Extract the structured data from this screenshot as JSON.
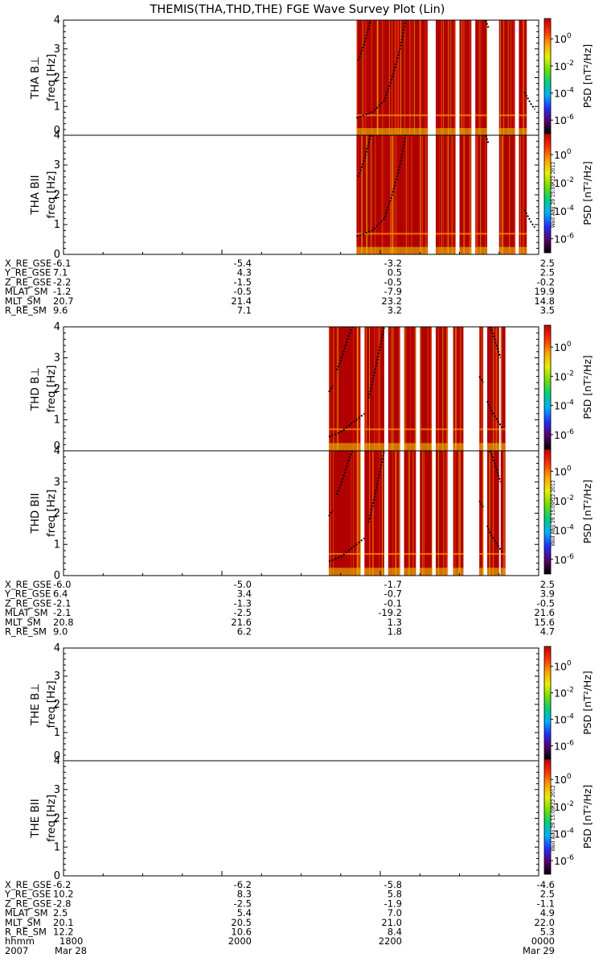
{
  "title": "THEMIS(THA,THD,THE) FGE Wave Survey Plot (Lin)",
  "side_stamp": "Wed Aug 29 15:09:22 2012",
  "colors": {
    "background": "#ffffff",
    "spectrogram_red": "#b00000",
    "axis": "#000000"
  },
  "colorbar": {
    "label": "PSD [nT²/Hz]",
    "ticks": [
      {
        "base": "10",
        "exp": "0"
      },
      {
        "base": "10",
        "exp": "-2"
      },
      {
        "base": "10",
        "exp": "-4"
      },
      {
        "base": "10",
        "exp": "-6"
      }
    ],
    "tick_exponents": [
      0,
      -2,
      -4,
      -6
    ],
    "range_exponent": [
      -7,
      1.5
    ],
    "stops": [
      "#000000",
      "#5a006e",
      "#2030ff",
      "#00b0ff",
      "#00d080",
      "#70e000",
      "#e8f000",
      "#ffa000",
      "#ff3000",
      "#c00000"
    ]
  },
  "freq_axis": {
    "label": "freq [Hz]",
    "ylim": [
      0,
      4
    ],
    "ticks": [
      "0",
      "1",
      "2",
      "3",
      "4"
    ]
  },
  "time_axis": {
    "start_hhmm": "1800",
    "end_hhmm": "0000",
    "start_date": "Mar 28",
    "end_date": "Mar 29",
    "year": "2007"
  },
  "chart_data": [
    {
      "probe": "THA",
      "type": "heatmap",
      "panels": [
        {
          "label": "THA B⊥",
          "ylabel": "freq [Hz]",
          "ylim": [
            0,
            4
          ]
        },
        {
          "label": "THA BII",
          "ylabel": "freq [Hz]",
          "ylim": [
            0,
            4
          ]
        }
      ],
      "data_coverage_hours": [
        [
          21.7,
          22.05
        ],
        [
          22.05,
          22.3
        ],
        [
          22.3,
          22.4
        ],
        [
          22.4,
          22.6
        ],
        [
          22.7,
          22.8
        ],
        [
          22.8,
          22.95
        ],
        [
          23.0,
          23.15
        ],
        [
          23.2,
          23.35
        ],
        [
          23.5,
          23.7
        ],
        [
          23.75,
          23.85
        ]
      ],
      "gyro_lines": [
        {
          "x": [
            21.72,
            21.75,
            21.8,
            21.85,
            21.88
          ],
          "y": [
            2.6,
            2.8,
            3.2,
            3.7,
            4.0
          ]
        },
        {
          "x": [
            21.7,
            21.9,
            22.05,
            22.15,
            22.25,
            22.32
          ],
          "y": [
            0.6,
            0.8,
            1.2,
            2.0,
            3.0,
            4.0
          ]
        },
        {
          "x": [
            23.33,
            23.37
          ],
          "y": [
            4.0,
            3.7
          ]
        },
        {
          "x": [
            23.82,
            23.9,
            23.95
          ],
          "y": [
            1.5,
            1.1,
            0.9
          ]
        }
      ],
      "ephemeris": {
        "rows": [
          {
            "name": "X_RE_GSE",
            "values": [
              "-6.1",
              "-5.4",
              "-3.2",
              "2.5"
            ]
          },
          {
            "name": "Y_RE_GSE",
            "values": [
              "7.1",
              "4.3",
              "0.5",
              "2.5"
            ]
          },
          {
            "name": "Z_RE_GSE",
            "values": [
              "-2.2",
              "-1.5",
              "-0.5",
              "-0.2"
            ]
          },
          {
            "name": "MLAT_SM",
            "values": [
              "-1.2",
              "-0.5",
              "-7.9",
              "19.9"
            ]
          },
          {
            "name": "MLT_SM",
            "values": [
              "20.7",
              "21.4",
              "23.2",
              "14.8"
            ]
          },
          {
            "name": "R_RE_SM",
            "values": [
              "9.6",
              "7.1",
              "3.2",
              "3.5"
            ]
          }
        ]
      }
    },
    {
      "probe": "THD",
      "type": "heatmap",
      "panels": [
        {
          "label": "THD B⊥",
          "ylabel": "freq [Hz]",
          "ylim": [
            0,
            4
          ]
        },
        {
          "label": "THD BII",
          "ylabel": "freq [Hz]",
          "ylim": [
            0,
            4
          ]
        }
      ],
      "data_coverage_hours": [
        [
          21.35,
          21.75
        ],
        [
          21.8,
          22.05
        ],
        [
          22.1,
          22.25
        ],
        [
          22.3,
          22.45
        ],
        [
          22.5,
          22.65
        ],
        [
          22.7,
          22.85
        ],
        [
          22.92,
          23.05
        ],
        [
          23.25,
          23.3
        ],
        [
          23.35,
          23.5
        ],
        [
          23.52,
          23.58
        ]
      ],
      "gyro_lines": [
        {
          "x": [
            21.35,
            21.5,
            21.6,
            21.7,
            21.8
          ],
          "y": [
            0.45,
            0.6,
            0.8,
            1.0,
            1.2
          ]
        },
        {
          "x": [
            21.35,
            21.4
          ],
          "y": [
            1.9,
            2.1
          ]
        },
        {
          "x": [
            21.45,
            21.5,
            21.55,
            21.6,
            21.65
          ],
          "y": [
            2.6,
            2.9,
            3.3,
            3.7,
            4.0
          ]
        },
        {
          "x": [
            21.85,
            21.9,
            21.95,
            22.0,
            22.05
          ],
          "y": [
            1.7,
            2.2,
            2.8,
            3.4,
            4.0
          ]
        },
        {
          "x": [
            23.25,
            23.3
          ],
          "y": [
            2.4,
            2.2
          ]
        },
        {
          "x": [
            23.35,
            23.4,
            23.5,
            23.55
          ],
          "y": [
            1.6,
            1.3,
            0.9,
            0.7
          ]
        },
        {
          "x": [
            23.38,
            23.42,
            23.48,
            23.52
          ],
          "y": [
            4.0,
            3.8,
            3.3,
            3.0
          ]
        }
      ],
      "ephemeris": {
        "rows": [
          {
            "name": "X_RE_GSE",
            "values": [
              "-6.0",
              "-5.0",
              "-1.7",
              "2.5"
            ]
          },
          {
            "name": "Y_RE_GSE",
            "values": [
              "6.4",
              "3.4",
              "-0.7",
              "3.9"
            ]
          },
          {
            "name": "Z_RE_GSE",
            "values": [
              "-2.1",
              "-1.3",
              "-0.1",
              "-0.5"
            ]
          },
          {
            "name": "MLAT_SM",
            "values": [
              "-2.1",
              "-2.5",
              "-19.2",
              "21.6"
            ]
          },
          {
            "name": "MLT_SM",
            "values": [
              "20.8",
              "21.6",
              "1.3",
              "15.6"
            ]
          },
          {
            "name": "R_RE_SM",
            "values": [
              "9.0",
              "6.2",
              "1.8",
              "4.7"
            ]
          }
        ]
      }
    },
    {
      "probe": "THE",
      "type": "heatmap",
      "panels": [
        {
          "label": "THE B⊥",
          "ylabel": "freq [Hz]",
          "ylim": [
            0,
            4
          ]
        },
        {
          "label": "THE BII",
          "ylabel": "freq [Hz]",
          "ylim": [
            0,
            4
          ]
        }
      ],
      "data_coverage_hours": [],
      "gyro_lines": [],
      "ephemeris": {
        "rows": [
          {
            "name": "X_RE_GSE",
            "values": [
              "-6.2",
              "-6.2",
              "-5.8",
              "-4.6"
            ]
          },
          {
            "name": "Y_RE_GSE",
            "values": [
              "10.2",
              "8.3",
              "5.8",
              "2.5"
            ]
          },
          {
            "name": "Z_RE_GSE",
            "values": [
              "-2.8",
              "-2.5",
              "-1.9",
              "-1.1"
            ]
          },
          {
            "name": "MLAT_SM",
            "values": [
              "2.5",
              "5.4",
              "7.0",
              "4.9"
            ]
          },
          {
            "name": "MLT_SM",
            "values": [
              "20.1",
              "20.5",
              "21.0",
              "22.0"
            ]
          },
          {
            "name": "R_RE_SM",
            "values": [
              "12.2",
              "10.6",
              "8.4",
              "5.3"
            ]
          }
        ],
        "hhmm": [
          "1800",
          "2000",
          "2200",
          "0000"
        ]
      }
    }
  ]
}
